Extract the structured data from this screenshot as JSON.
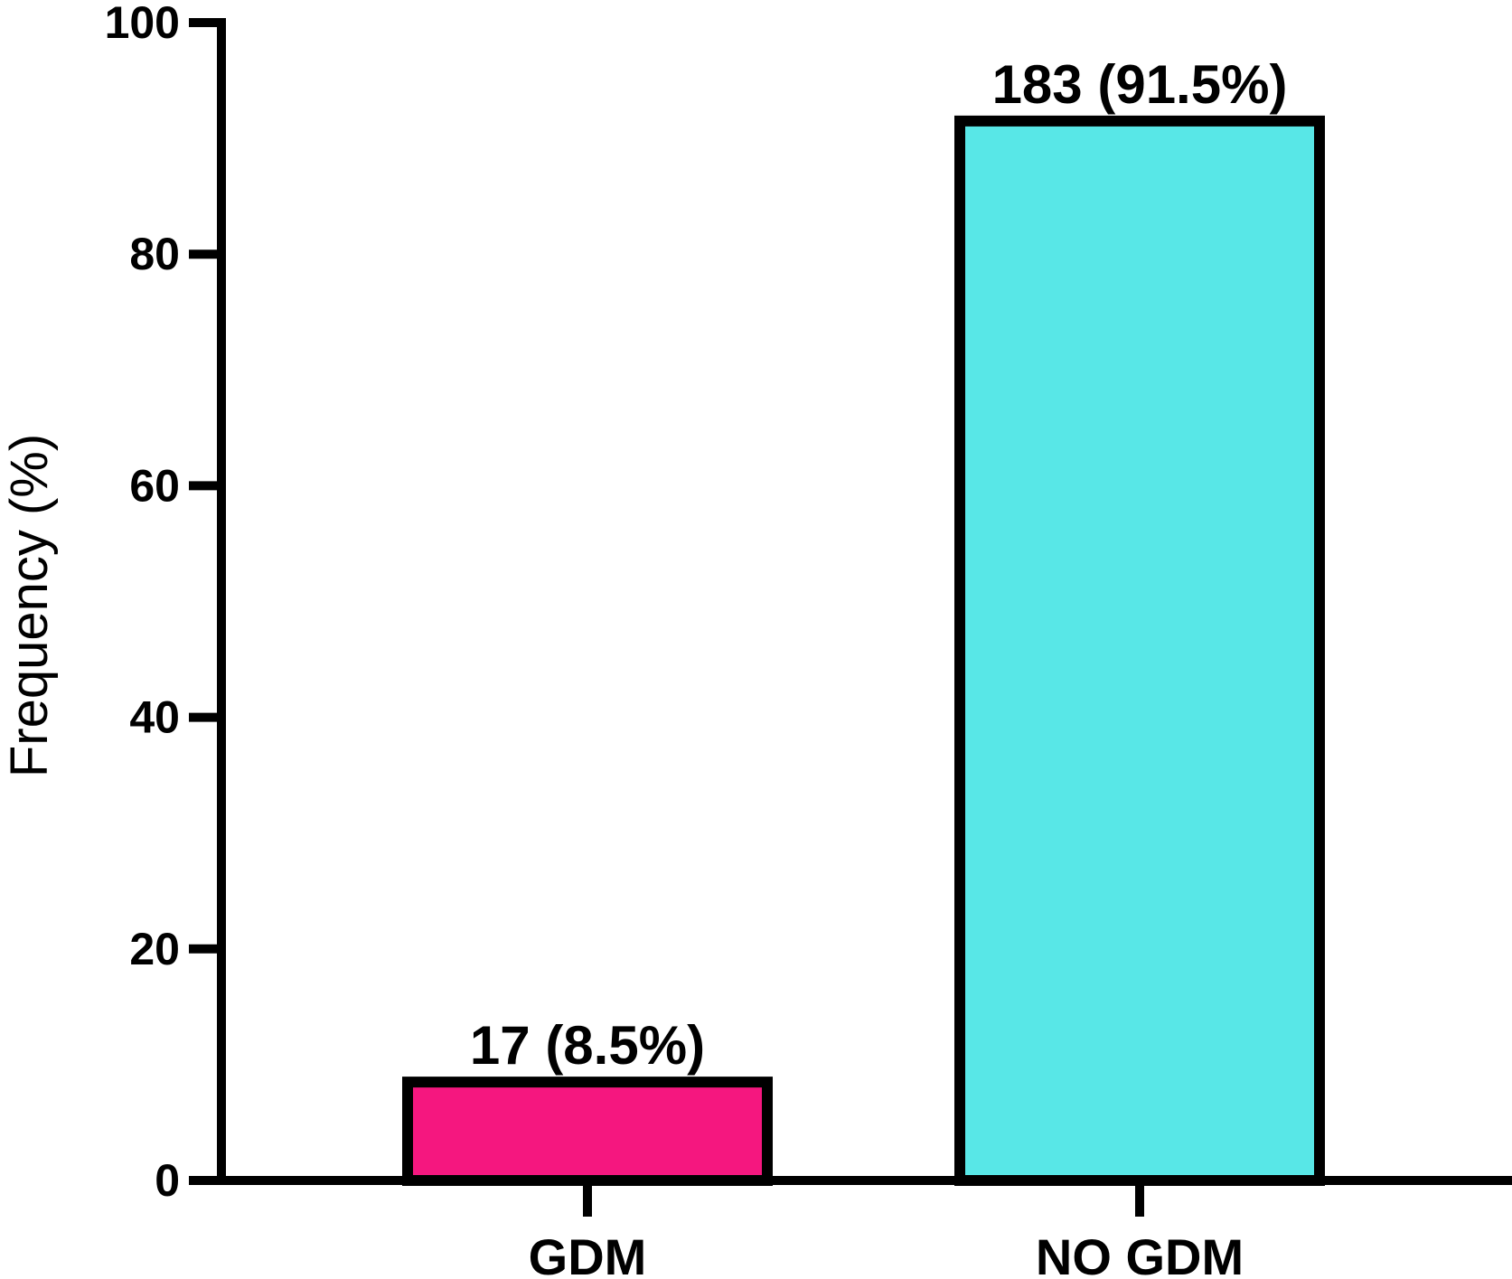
{
  "chart_data": {
    "type": "bar",
    "title": "",
    "xlabel": "",
    "ylabel": "Frequency (%)",
    "ylim": [
      0,
      100
    ],
    "yticks": [
      0,
      20,
      40,
      60,
      80,
      100
    ],
    "grid": false,
    "categories": [
      "GDM",
      "NO GDM"
    ],
    "values": [
      8.5,
      91.5
    ],
    "data_labels": [
      "17 (8.5%)",
      "183 (91.5%)"
    ],
    "colors": [
      "#f5177f",
      "#58e7e7"
    ],
    "edge_color": "#000000"
  }
}
